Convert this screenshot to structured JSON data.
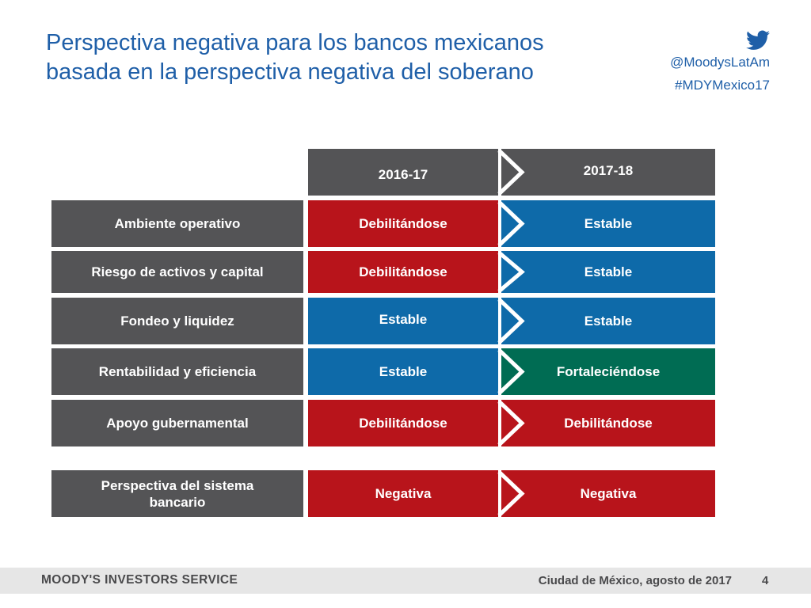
{
  "title": {
    "line1": "Perspectiva negativa para los bancos mexicanos",
    "line2": "basada en la perspectiva negativa del soberano"
  },
  "social": {
    "handle": "@MoodysLatAm",
    "hashtag": "#MDYMexico17",
    "icon": "twitter-bird-icon"
  },
  "table": {
    "headers": [
      "2016-17",
      "2017-18"
    ],
    "rows": [
      {
        "label": "Ambiente operativo",
        "y2016": "Debilitándose",
        "y2017": "Estable"
      },
      {
        "label": "Riesgo de activos y capital",
        "y2016": "Debilitándose",
        "y2017": "Estable"
      },
      {
        "label": "Fondeo y liquidez",
        "y2016": "Estable",
        "y2017": "Estable"
      },
      {
        "label": "Rentabilidad y eficiencia",
        "y2016": "Estable",
        "y2017": "Fortaleciéndose"
      },
      {
        "label": "Apoyo gubernamental",
        "y2016": "Debilitándose",
        "y2017": "Debilitándose"
      }
    ],
    "summary": {
      "label": "Perspectiva del sistema bancario",
      "y2016": "Negativa",
      "y2017": "Negativa"
    }
  },
  "colors": {
    "header": "#545456",
    "weakening": "#b8141b",
    "stable": "#0e6aa9",
    "strengthening": "#006c53"
  },
  "footer": {
    "brand": "MOODY'S INVESTORS SERVICE",
    "place_date": "Ciudad de México, agosto de 2017",
    "page": "4"
  }
}
